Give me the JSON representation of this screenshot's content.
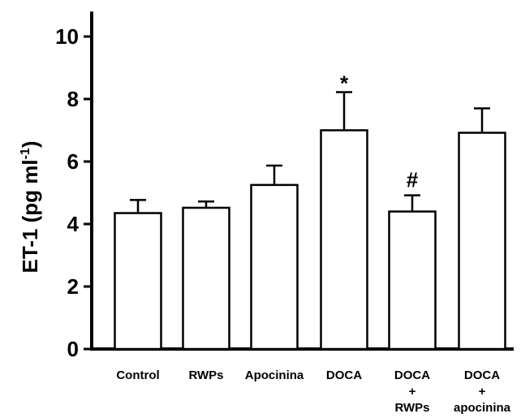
{
  "chart_data": {
    "type": "bar",
    "categories": [
      [
        "Control"
      ],
      [
        "RWPs"
      ],
      [
        "Apocinina"
      ],
      [
        "DOCA"
      ],
      [
        "DOCA",
        "+",
        "RWPs"
      ],
      [
        "DOCA",
        "+",
        "apocinina"
      ]
    ],
    "values": [
      4.35,
      4.52,
      5.25,
      7.0,
      4.4,
      6.92
    ],
    "errors": [
      0.42,
      0.2,
      0.62,
      1.22,
      0.52,
      0.78
    ],
    "annotations": [
      "",
      "",
      "",
      "*",
      "#",
      ""
    ],
    "ylabel": {
      "main": "ET-1 (pg ml",
      "sup": "-1",
      "close": ")"
    },
    "ylim": [
      0,
      10.8
    ],
    "yticks": [
      "0",
      "2",
      "4",
      "6",
      "8",
      "10"
    ],
    "grid": false,
    "bar_fill": "#ffffff",
    "bar_stroke": "#000000"
  }
}
